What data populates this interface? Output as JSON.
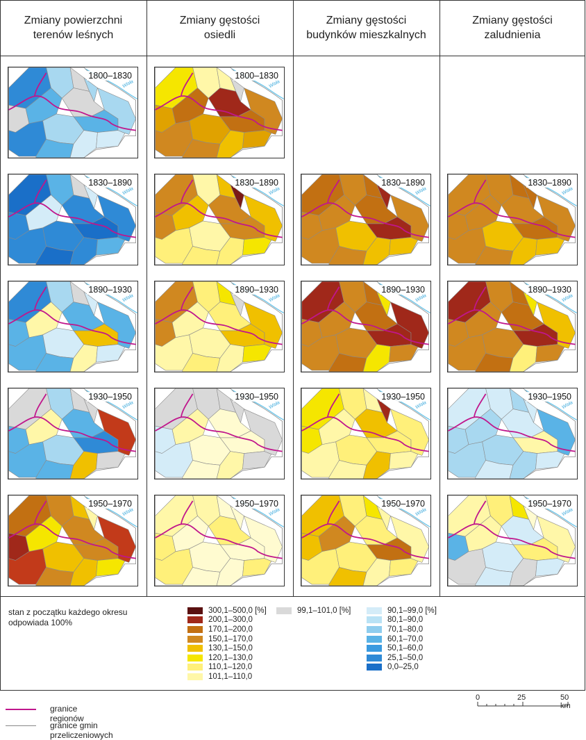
{
  "columns": [
    {
      "title": "Zmiany powierzchni terenów leśnych"
    },
    {
      "title": "Zmiany gęstości osiedli"
    },
    {
      "title": "Zmiany gęstości budynków mieszkalnych"
    },
    {
      "title": "Zmiany gęstości zaludnienia"
    }
  ],
  "river_label": "Wisła",
  "panels": [
    {
      "col": 0,
      "row": 0,
      "period": "1800–1830",
      "fills": [
        "#2f8ad6",
        "#a8d8f0",
        "#d9d9d9",
        "#d9d9d9",
        "#a8d8f0",
        "#5ab3e6",
        "#d9d9d9",
        "#5ab3e6",
        "#2f8ad6",
        "#a8d8f0",
        "#5ab3e6",
        "#d4ecf8",
        "#d4ecf8",
        "#a8d8f0"
      ]
    },
    {
      "col": 1,
      "row": 0,
      "period": "1800–1830",
      "fills": [
        "#f5e600",
        "#fff7a8",
        "#fff7a8",
        "#e0a200",
        "#d9d9d9",
        "#c27012",
        "#a0281a",
        "#c27012",
        "#d08820",
        "#e0a200",
        "#d08820",
        "#f0c000",
        "#e0a200",
        "#d08820"
      ]
    },
    {
      "col": 0,
      "row": 1,
      "period": "1830–1890",
      "fills": [
        "#1a6fc8",
        "#5ab3e6",
        "#d9d9d9",
        "#2f8ad6",
        "#d4ecf8",
        "#d4ecf8",
        "#2f8ad6",
        "#1a6fc8",
        "#2f8ad6",
        "#2f8ad6",
        "#1a6fc8",
        "#2f8ad6",
        "#5ab3e6",
        "#2f8ad6"
      ]
    },
    {
      "col": 1,
      "row": 1,
      "period": "1830–1890",
      "fills": [
        "#d08820",
        "#fff7a8",
        "#f0c000",
        "#d08820",
        "#7a1a16",
        "#f0c000",
        "#d08820",
        "#d08820",
        "#fff07a",
        "#fff7a8",
        "#fff07a",
        "#fff07a",
        "#f5e600",
        "#f0c000"
      ]
    },
    {
      "col": 2,
      "row": 1,
      "period": "1830–1890",
      "fills": [
        "#c27012",
        "#d08820",
        "#c27012",
        "#d08820",
        "#a0281a",
        "#d08820",
        "#c27012",
        "#a0281a",
        "#d08820",
        "#f0c000",
        "#d08820",
        "#f0c000",
        "#f0c000",
        "#d08820"
      ]
    },
    {
      "col": 3,
      "row": 1,
      "period": "1830–1890",
      "fills": [
        "#d08820",
        "#d08820",
        "#c27012",
        "#d08820",
        "#c27012",
        "#d08820",
        "#d08820",
        "#c27012",
        "#d08820",
        "#f0c000",
        "#d08820",
        "#f0c000",
        "#f0c000",
        "#d08820"
      ]
    },
    {
      "col": 0,
      "row": 2,
      "period": "1890–1930",
      "fills": [
        "#2f8ad6",
        "#a8d8f0",
        "#d9d9d9",
        "#5ab3e6",
        "#d4ecf8",
        "#fff7a8",
        "#5ab3e6",
        "#f0c000",
        "#5ab3e6",
        "#d4ecf8",
        "#5ab3e6",
        "#fff7a8",
        "#d4ecf8",
        "#5ab3e6"
      ]
    },
    {
      "col": 1,
      "row": 2,
      "period": "1890–1930",
      "fills": [
        "#d08820",
        "#fff07a",
        "#f5e600",
        "#d08820",
        "#d9d9d9",
        "#fff7a8",
        "#fff07a",
        "#f0c000",
        "#fff7a8",
        "#fff7a8",
        "#fff07a",
        "#fff7a8",
        "#f5e600",
        "#f0c000"
      ]
    },
    {
      "col": 2,
      "row": 2,
      "period": "1890–1930",
      "fills": [
        "#a0281a",
        "#d08820",
        "#c27012",
        "#d08820",
        "#f5e600",
        "#d08820",
        "#c27012",
        "#a0281a",
        "#d08820",
        "#d08820",
        "#c27012",
        "#f5e600",
        "#d08820",
        "#a0281a"
      ]
    },
    {
      "col": 3,
      "row": 2,
      "period": "1890–1930",
      "fills": [
        "#a0281a",
        "#d08820",
        "#c27012",
        "#d08820",
        "#f5e600",
        "#d08820",
        "#c27012",
        "#a0281a",
        "#d08820",
        "#d08820",
        "#c27012",
        "#fff07a",
        "#d08820",
        "#f0c000"
      ]
    },
    {
      "col": 0,
      "row": 3,
      "period": "1930–1950",
      "fills": [
        "#d9d9d9",
        "#a8d8f0",
        "#d9d9d9",
        "#5ab3e6",
        "#d9d9d9",
        "#fff7a8",
        "#5ab3e6",
        "#2f8ad6",
        "#5ab3e6",
        "#a8d8f0",
        "#5ab3e6",
        "#f0c000",
        "#d9d9d9",
        "#c23a1a"
      ]
    },
    {
      "col": 1,
      "row": 3,
      "period": "1930–1950",
      "fills": [
        "#d9d9d9",
        "#d9d9d9",
        "#d9d9d9",
        "#d4ecf8",
        "#d9d9d9",
        "#fff7a8",
        "#fffbd0",
        "#fffbd0",
        "#d4ecf8",
        "#fffbd0",
        "#fffbd0",
        "#fff7a8",
        "#d9d9d9",
        "#d9d9d9"
      ]
    },
    {
      "col": 2,
      "row": 3,
      "period": "1930–1950",
      "fills": [
        "#f5e600",
        "#fff07a",
        "#fff7a8",
        "#f5e600",
        "#a0281a",
        "#fff7a8",
        "#f0c000",
        "#fff07a",
        "#fff7a8",
        "#fff07a",
        "#fff7a8",
        "#f0c000",
        "#fff7a8",
        "#fff07a"
      ]
    },
    {
      "col": 3,
      "row": 3,
      "period": "1930–1950",
      "fills": [
        "#d4ecf8",
        "#d4ecf8",
        "#a8d8f0",
        "#a8d8f0",
        "#d4ecf8",
        "#a8d8f0",
        "#d4ecf8",
        "#fff7a8",
        "#a8d8f0",
        "#a8d8f0",
        "#d4ecf8",
        "#a8d8f0",
        "#d4ecf8",
        "#5ab3e6"
      ]
    },
    {
      "col": 0,
      "row": 4,
      "period": "1950–1970",
      "fills": [
        "#c27012",
        "#d08820",
        "#f0c000",
        "#a0281a",
        "#fff7a8",
        "#f5e600",
        "#d08820",
        "#d08820",
        "#c23a1a",
        "#f0c000",
        "#d08820",
        "#f0c000",
        "#f5e600",
        "#c23a1a"
      ]
    },
    {
      "col": 1,
      "row": 4,
      "period": "1950–1970",
      "fills": [
        "#fff7a8",
        "#fff7a8",
        "#fffbd0",
        "#fff07a",
        "#fffbd0",
        "#fffbd0",
        "#fff07a",
        "#fffbd0",
        "#fff07a",
        "#fffbd0",
        "#fffbd0",
        "#fffbd0",
        "#fff07a",
        "#fffbd0"
      ]
    },
    {
      "col": 2,
      "row": 4,
      "period": "1950–1970",
      "fills": [
        "#f0c000",
        "#fff07a",
        "#f5e600",
        "#f0c000",
        "#fff7a8",
        "#d08820",
        "#fff07a",
        "#c27012",
        "#fff07a",
        "#fff07a",
        "#f0c000",
        "#fff7a8",
        "#fff07a",
        "#fff7a8"
      ]
    },
    {
      "col": 3,
      "row": 4,
      "period": "1950–1970",
      "fills": [
        "#fff7a8",
        "#fff07a",
        "#f5e600",
        "#5ab3e6",
        "#fffbd0",
        "#fff7a8",
        "#d4ecf8",
        "#fff07a",
        "#d9d9d9",
        "#d4ecf8",
        "#d4ecf8",
        "#d9d9d9",
        "#d4ecf8",
        "#fff7a8"
      ]
    }
  ],
  "legend": {
    "note": "stan z początku każdego okresu odpowiada 100%",
    "increase": [
      {
        "label": "300,1–500,0 [%]",
        "color": "#5a1010"
      },
      {
        "label": "200,1–300,0",
        "color": "#a0281a"
      },
      {
        "label": "170,1–200,0",
        "color": "#c27012"
      },
      {
        "label": "150,1–170,0",
        "color": "#d08820"
      },
      {
        "label": "130,1–150,0",
        "color": "#f0c000"
      },
      {
        "label": "120,1–130,0",
        "color": "#f5e600"
      },
      {
        "label": "110,1–120,0",
        "color": "#fff07a"
      },
      {
        "label": "101,1–110,0",
        "color": "#fff7a8"
      }
    ],
    "stable": {
      "label": "99,1–101,0 [%]",
      "color": "#d9d9d9"
    },
    "decrease": [
      {
        "label": "90,1–99,0 [%]",
        "color": "#d4ecf8"
      },
      {
        "label": "80,1–90,0",
        "color": "#b9e2f5"
      },
      {
        "label": "70,1–80,0",
        "color": "#8fcdee"
      },
      {
        "label": "60,1–70,0",
        "color": "#5ab3e6"
      },
      {
        "label": "50,1–60,0",
        "color": "#3a9ae0"
      },
      {
        "label": "25,1–50,0",
        "color": "#2f8ad6"
      },
      {
        "label": "0,0–25,0",
        "color": "#1a6fc8"
      }
    ]
  },
  "bottom_legend": {
    "regions_label": "granice regionów",
    "regions_color": "#c0168c",
    "gminas_label": "granice gmin przeliczeniowych",
    "gminas_color": "#888888"
  },
  "scale": {
    "ticks": [
      "0",
      "25",
      "50 km"
    ]
  }
}
